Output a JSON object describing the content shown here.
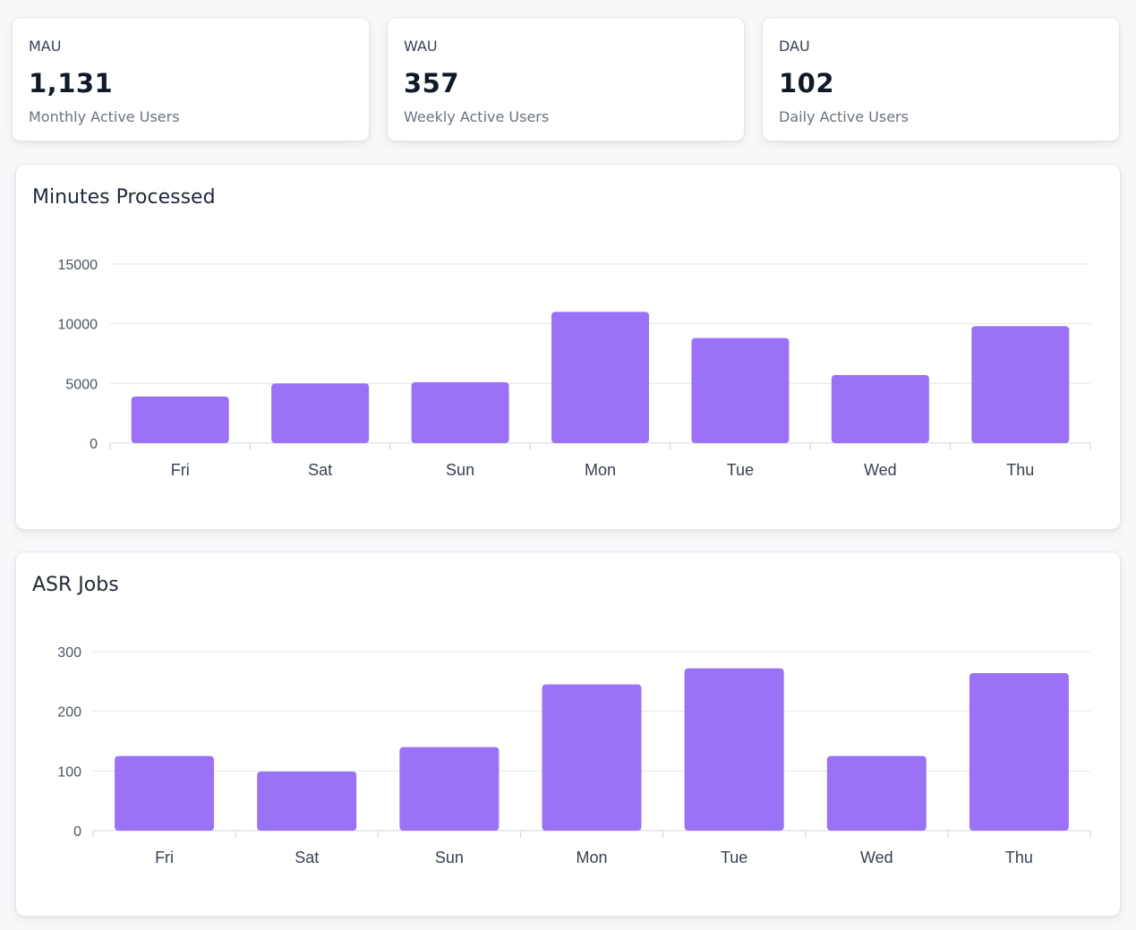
{
  "stats": [
    {
      "label": "MAU",
      "value": "1,131",
      "desc": "Monthly Active Users"
    },
    {
      "label": "WAU",
      "value": "357",
      "desc": "Weekly Active Users"
    },
    {
      "label": "DAU",
      "value": "102",
      "desc": "Daily Active Users"
    }
  ],
  "colors": {
    "bar": "#9b72f5",
    "grid": "#e5e7eb",
    "axis": "#d1d5db"
  },
  "chart_data": [
    {
      "type": "bar",
      "title": "Minutes Processed",
      "categories": [
        "Fri",
        "Sat",
        "Sun",
        "Mon",
        "Tue",
        "Wed",
        "Thu"
      ],
      "values": [
        3900,
        5000,
        5100,
        11000,
        8800,
        5700,
        9800
      ],
      "yticks": [
        0,
        5000,
        10000,
        15000
      ],
      "ylim": [
        0,
        15000
      ],
      "grid": true
    },
    {
      "type": "bar",
      "title": "ASR Jobs",
      "categories": [
        "Fri",
        "Sat",
        "Sun",
        "Mon",
        "Tue",
        "Wed",
        "Thu"
      ],
      "values": [
        125,
        99,
        140,
        245,
        272,
        125,
        264
      ],
      "yticks": [
        0,
        100,
        200,
        300
      ],
      "ylim": [
        0,
        300
      ],
      "grid": true
    }
  ]
}
